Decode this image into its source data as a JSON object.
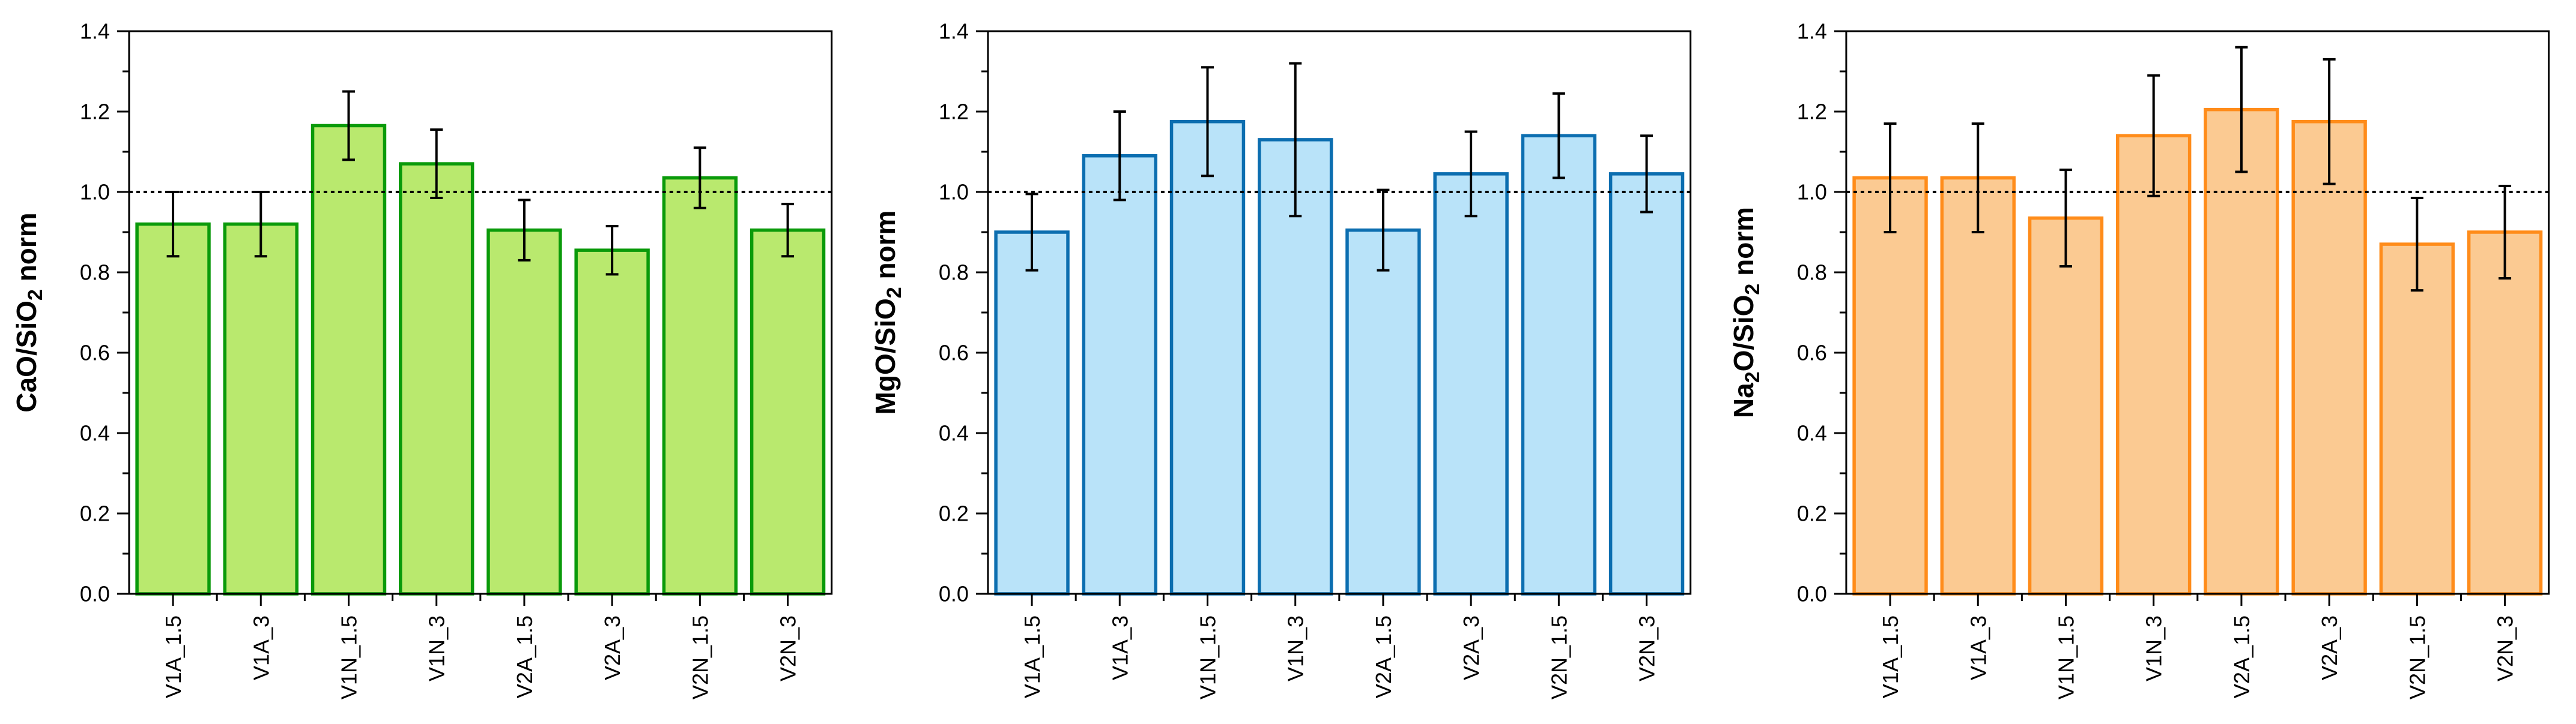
{
  "figure": {
    "background": "#ffffff",
    "style": {
      "axis_color": "#000000",
      "text_color": "#000000",
      "error_bar_color": "#000000",
      "reference_line_color": "#000000",
      "reference_line_style": "dotted"
    }
  },
  "chart_data": [
    {
      "id": "cao",
      "type": "bar",
      "title": "",
      "ylabel": "CaO/SiO2 norm",
      "ylabel_parts": [
        {
          "text": "CaO/SiO"
        },
        {
          "text": "2",
          "sub": true
        },
        {
          "text": " norm"
        }
      ],
      "xlabel": "",
      "categories": [
        "V1A_1.5",
        "V1A_3",
        "V1N_1.5",
        "V1N_3",
        "V2A_1.5",
        "V2A_3",
        "V2N_1.5",
        "V2N_3"
      ],
      "values": [
        0.92,
        0.92,
        1.165,
        1.07,
        0.905,
        0.855,
        1.035,
        0.905
      ],
      "errors": [
        0.08,
        0.08,
        0.085,
        0.085,
        0.075,
        0.06,
        0.075,
        0.065
      ],
      "ylim": [
        0.0,
        1.4
      ],
      "ytick_step": 0.2,
      "yminor_step": 0.1,
      "ytick_labels": [
        "0.0",
        "0.2",
        "0.4",
        "0.6",
        "0.8",
        "1.0",
        "1.2",
        "1.4"
      ],
      "reference_line": 1.0,
      "grid": false,
      "legend": null,
      "bar_fill": "#b9e96e",
      "bar_edge": "#0a9a0a"
    },
    {
      "id": "mgo",
      "type": "bar",
      "title": "",
      "ylabel": "MgO/SiO2 norm",
      "ylabel_parts": [
        {
          "text": "MgO/SiO"
        },
        {
          "text": "2",
          "sub": true
        },
        {
          "text": " norm"
        }
      ],
      "xlabel": "",
      "categories": [
        "V1A_1.5",
        "V1A_3",
        "V1N_1.5",
        "V1N_3",
        "V2A_1.5",
        "V2A_3",
        "V2N_1.5",
        "V2N_3"
      ],
      "values": [
        0.9,
        1.09,
        1.175,
        1.13,
        0.905,
        1.045,
        1.14,
        1.045
      ],
      "errors": [
        0.095,
        0.11,
        0.135,
        0.19,
        0.1,
        0.105,
        0.105,
        0.095
      ],
      "ylim": [
        0.0,
        1.4
      ],
      "ytick_step": 0.2,
      "yminor_step": 0.1,
      "ytick_labels": [
        "0.0",
        "0.2",
        "0.4",
        "0.6",
        "0.8",
        "1.0",
        "1.2",
        "1.4"
      ],
      "reference_line": 1.0,
      "grid": false,
      "legend": null,
      "bar_fill": "#b9e3f9",
      "bar_edge": "#0c6eb0"
    },
    {
      "id": "na2o",
      "type": "bar",
      "title": "",
      "ylabel": "Na2O/SiO2 norm",
      "ylabel_parts": [
        {
          "text": "Na"
        },
        {
          "text": "2",
          "sub": true
        },
        {
          "text": "O/SiO"
        },
        {
          "text": "2",
          "sub": true
        },
        {
          "text": " norm"
        }
      ],
      "xlabel": "",
      "categories": [
        "V1A_1.5",
        "V1A_3",
        "V1N_1.5",
        "V1N_3",
        "V2A_1.5",
        "V2A_3",
        "V2N_1.5",
        "V2N_3"
      ],
      "values": [
        1.035,
        1.035,
        0.935,
        1.14,
        1.205,
        1.175,
        0.87,
        0.9
      ],
      "errors": [
        0.135,
        0.135,
        0.12,
        0.15,
        0.155,
        0.155,
        0.115,
        0.115
      ],
      "ylim": [
        0.0,
        1.4
      ],
      "ytick_step": 0.2,
      "yminor_step": 0.1,
      "ytick_labels": [
        "0.0",
        "0.2",
        "0.4",
        "0.6",
        "0.8",
        "1.0",
        "1.2",
        "1.4"
      ],
      "reference_line": 1.0,
      "grid": false,
      "legend": null,
      "bar_fill": "#fbca92",
      "bar_edge": "#ff8c1a"
    }
  ]
}
